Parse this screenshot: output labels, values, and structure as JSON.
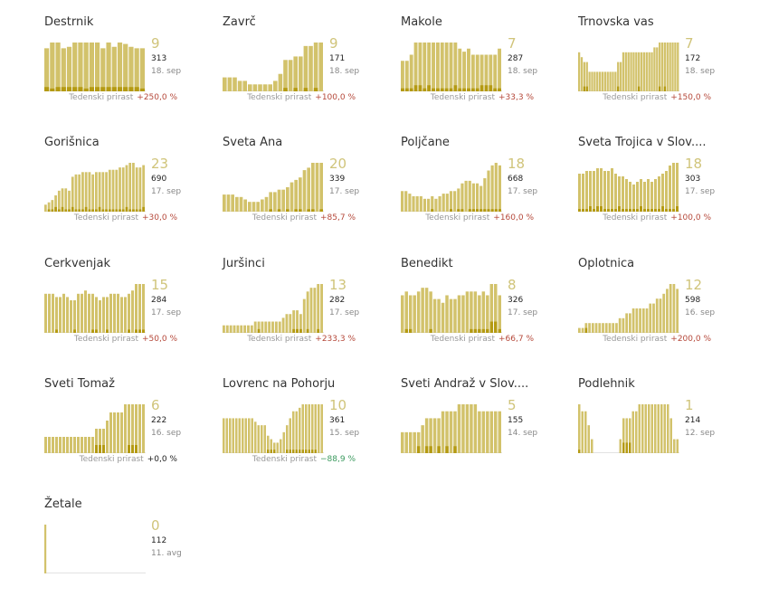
{
  "colors": {
    "bar": "#d2c26b",
    "bar_dark": "#b49a12",
    "baseline": "#e2e2e2",
    "up": "#b5483a",
    "down": "#3c9a5f"
  },
  "footer_label": "Tedenski prirast",
  "chart_data": [
    {
      "type": "bar",
      "title": "Destrnik",
      "value": "9",
      "total": "313",
      "date": "18. sep",
      "change": "+250,0 %",
      "trend": "up",
      "values": [
        30,
        34,
        34,
        30,
        31,
        34,
        34,
        34,
        34,
        34,
        30,
        34,
        31,
        34,
        33,
        31,
        30,
        30
      ],
      "highlight": [
        3,
        2,
        3,
        3,
        3,
        3,
        3,
        2,
        3,
        3,
        3,
        3,
        3,
        3,
        3,
        3,
        3,
        2
      ]
    },
    {
      "type": "bar",
      "title": "Zavrč",
      "value": "9",
      "total": "171",
      "date": "18. sep",
      "change": "+100,0 %",
      "trend": "up",
      "values": [
        4,
        4,
        4,
        3,
        3,
        2,
        2,
        2,
        2,
        2,
        3,
        5,
        9,
        9,
        10,
        10,
        13,
        13,
        14,
        14
      ],
      "highlight": [
        0,
        0,
        0,
        0,
        0,
        0,
        0,
        0,
        0,
        0,
        0,
        0,
        1,
        0,
        1,
        0,
        1,
        0,
        1,
        0
      ]
    },
    {
      "type": "bar",
      "title": "Makole",
      "value": "7",
      "total": "287",
      "date": "18. sep",
      "change": "+33,3 %",
      "trend": "up",
      "values": [
        10,
        10,
        12,
        16,
        16,
        16,
        16,
        16,
        16,
        16,
        16,
        16,
        16,
        14,
        13,
        14,
        12,
        12,
        12,
        12,
        12,
        12,
        14
      ],
      "highlight": [
        1,
        1,
        1,
        2,
        2,
        1,
        2,
        1,
        1,
        1,
        1,
        1,
        2,
        1,
        1,
        1,
        1,
        1,
        2,
        2,
        2,
        1,
        1
      ]
    },
    {
      "type": "bar",
      "title": "Trnovska vas",
      "value": "7",
      "total": "172",
      "date": "18. sep",
      "change": "+150,0 %",
      "trend": "up",
      "values": [
        8,
        7,
        6,
        6,
        4,
        4,
        4,
        4,
        4,
        4,
        4,
        4,
        4,
        4,
        4,
        6,
        6,
        8,
        8,
        8,
        8,
        8,
        8,
        8,
        8,
        8,
        8,
        8,
        8,
        9,
        9,
        10,
        10,
        10,
        10,
        10,
        10,
        10,
        10
      ],
      "highlight": [
        0,
        0,
        1,
        1,
        0,
        0,
        0,
        0,
        0,
        0,
        0,
        0,
        0,
        0,
        0,
        1,
        0,
        0,
        0,
        0,
        0,
        0,
        0,
        1,
        0,
        0,
        0,
        0,
        0,
        0,
        0,
        1,
        0,
        1,
        0,
        0,
        0,
        0,
        0
      ]
    },
    {
      "type": "bar",
      "title": "Gorišnica",
      "value": "23",
      "total": "690",
      "date": "17. sep",
      "change": "+30,0 %",
      "trend": "up",
      "values": [
        3,
        4,
        5,
        7,
        9,
        10,
        10,
        9,
        15,
        16,
        16,
        17,
        17,
        17,
        16,
        17,
        17,
        17,
        17,
        18,
        18,
        18,
        19,
        19,
        20,
        21,
        21,
        19,
        19,
        20
      ],
      "highlight": [
        0,
        1,
        1,
        2,
        1,
        2,
        1,
        1,
        2,
        1,
        1,
        1,
        2,
        1,
        1,
        1,
        2,
        1,
        1,
        1,
        1,
        1,
        1,
        1,
        2,
        1,
        1,
        1,
        1,
        2
      ]
    },
    {
      "type": "bar",
      "title": "Sveta Ana",
      "value": "20",
      "total": "339",
      "date": "17. sep",
      "change": "+85,7 %",
      "trend": "up",
      "values": [
        7,
        7,
        7,
        6,
        6,
        5,
        4,
        4,
        4,
        5,
        6,
        8,
        8,
        9,
        9,
        10,
        12,
        13,
        14,
        17,
        18,
        20,
        20,
        20
      ],
      "highlight": [
        0,
        0,
        0,
        0,
        0,
        0,
        0,
        0,
        0,
        0,
        0,
        1,
        0,
        1,
        0,
        1,
        0,
        1,
        1,
        0,
        1,
        1,
        0,
        1
      ]
    },
    {
      "type": "bar",
      "title": "Poljčane",
      "value": "18",
      "total": "668",
      "date": "17. sep",
      "change": "+160,0 %",
      "trend": "up",
      "values": [
        8,
        8,
        7,
        6,
        6,
        6,
        5,
        5,
        6,
        5,
        6,
        7,
        7,
        8,
        8,
        9,
        11,
        12,
        12,
        11,
        11,
        10,
        13,
        16,
        18,
        19,
        18
      ],
      "highlight": [
        0,
        0,
        0,
        0,
        0,
        0,
        0,
        0,
        1,
        0,
        0,
        0,
        0,
        1,
        0,
        1,
        1,
        0,
        1,
        1,
        1,
        1,
        1,
        1,
        1,
        1,
        1
      ]
    },
    {
      "type": "bar",
      "title": "Sveta Trojica v Slov....",
      "value": "18",
      "total": "303",
      "date": "17. sep",
      "change": "+100,0 %",
      "trend": "up",
      "values": [
        14,
        14,
        15,
        15,
        15,
        16,
        16,
        15,
        15,
        16,
        14,
        13,
        13,
        12,
        11,
        10,
        11,
        12,
        11,
        12,
        11,
        12,
        13,
        14,
        15,
        17,
        18,
        18
      ],
      "highlight": [
        1,
        1,
        1,
        2,
        1,
        2,
        2,
        1,
        1,
        1,
        1,
        2,
        1,
        1,
        1,
        1,
        1,
        2,
        1,
        1,
        1,
        1,
        1,
        2,
        1,
        1,
        1,
        2
      ]
    },
    {
      "type": "bar",
      "title": "Cerkvenjak",
      "value": "15",
      "total": "284",
      "date": "17. sep",
      "change": "+50,0 %",
      "trend": "up",
      "values": [
        12,
        12,
        12,
        11,
        11,
        12,
        11,
        10,
        10,
        12,
        12,
        13,
        12,
        12,
        11,
        10,
        11,
        11,
        12,
        12,
        12,
        11,
        11,
        12,
        13,
        15,
        15,
        15
      ],
      "highlight": [
        0,
        0,
        0,
        1,
        0,
        0,
        0,
        0,
        1,
        0,
        0,
        0,
        0,
        1,
        1,
        0,
        0,
        1,
        0,
        0,
        0,
        0,
        0,
        1,
        0,
        1,
        1,
        1
      ]
    },
    {
      "type": "bar",
      "title": "Juršinci",
      "value": "13",
      "total": "282",
      "date": "17. sep",
      "change": "+233,3 %",
      "trend": "up",
      "values": [
        2,
        2,
        2,
        2,
        2,
        2,
        2,
        2,
        2,
        3,
        3,
        3,
        3,
        3,
        3,
        3,
        3,
        4,
        5,
        5,
        6,
        6,
        5,
        9,
        11,
        12,
        12,
        13,
        13
      ],
      "highlight": [
        0,
        0,
        0,
        0,
        0,
        0,
        0,
        0,
        0,
        0,
        1,
        0,
        0,
        0,
        0,
        0,
        0,
        0,
        0,
        0,
        1,
        1,
        1,
        0,
        1,
        0,
        0,
        1,
        0
      ]
    },
    {
      "type": "bar",
      "title": "Benedikt",
      "value": "8",
      "total": "326",
      "date": "17. sep",
      "change": "+66,7 %",
      "trend": "up",
      "values": [
        10,
        11,
        10,
        10,
        11,
        12,
        12,
        11,
        9,
        9,
        8,
        10,
        9,
        9,
        10,
        10,
        11,
        11,
        11,
        10,
        11,
        10,
        13,
        13,
        10
      ],
      "highlight": [
        0,
        1,
        1,
        0,
        0,
        0,
        0,
        1,
        0,
        0,
        0,
        0,
        0,
        0,
        0,
        0,
        0,
        1,
        1,
        1,
        1,
        1,
        3,
        3,
        1
      ]
    },
    {
      "type": "bar",
      "title": "Oplotnica",
      "value": "12",
      "total": "598",
      "date": "16. sep",
      "change": "+200,0 %",
      "trend": "up",
      "values": [
        1,
        1,
        2,
        2,
        2,
        2,
        2,
        2,
        2,
        2,
        2,
        2,
        3,
        3,
        4,
        4,
        5,
        5,
        5,
        5,
        5,
        6,
        6,
        7,
        7,
        8,
        9,
        10,
        10,
        9
      ],
      "highlight": [
        0,
        0,
        1,
        0,
        0,
        0,
        0,
        0,
        0,
        0,
        0,
        0,
        0,
        0,
        0,
        0,
        0,
        0,
        0,
        0,
        0,
        0,
        0,
        0,
        0,
        0,
        0,
        0,
        0,
        0
      ]
    },
    {
      "type": "bar",
      "title": "Sveti Tomaž",
      "value": "6",
      "total": "222",
      "date": "16. sep",
      "change": "+0,0 %",
      "trend": "zero",
      "values": [
        2,
        2,
        2,
        2,
        2,
        2,
        2,
        2,
        2,
        2,
        2,
        2,
        2,
        2,
        3,
        3,
        3,
        4,
        5,
        5,
        5,
        5,
        6,
        6,
        6,
        6,
        6,
        6
      ],
      "highlight": [
        0,
        0,
        0,
        0,
        0,
        0,
        0,
        0,
        0,
        0,
        0,
        0,
        0,
        0,
        1,
        1,
        1,
        0,
        0,
        0,
        0,
        0,
        0,
        1,
        1,
        1,
        0,
        0
      ]
    },
    {
      "type": "bar",
      "title": "Lovrenc na Pohorju",
      "value": "10",
      "total": "361",
      "date": "15. sep",
      "change": "−88,9 %",
      "trend": "down",
      "values": [
        10,
        10,
        10,
        10,
        10,
        10,
        10,
        10,
        10,
        10,
        9,
        8,
        8,
        8,
        5,
        4,
        3,
        3,
        4,
        6,
        8,
        10,
        12,
        12,
        13,
        14,
        14,
        14,
        14,
        14,
        14,
        14
      ],
      "highlight": [
        0,
        0,
        0,
        0,
        0,
        0,
        0,
        0,
        0,
        0,
        0,
        0,
        0,
        0,
        1,
        1,
        1,
        0,
        0,
        0,
        1,
        1,
        1,
        1,
        1,
        1,
        1,
        1,
        1,
        1,
        0,
        0
      ]
    },
    {
      "type": "bar",
      "title": "Sveti Andraž v Slov....",
      "value": "5",
      "total": "155",
      "date": "14. sep",
      "change": "",
      "trend": "none",
      "values": [
        3,
        3,
        3,
        3,
        3,
        4,
        5,
        5,
        5,
        5,
        6,
        6,
        6,
        6,
        7,
        7,
        7,
        7,
        7,
        6,
        6,
        6,
        6,
        6,
        6
      ],
      "highlight": [
        0,
        0,
        0,
        0,
        1,
        0,
        1,
        1,
        0,
        1,
        0,
        1,
        0,
        1,
        0,
        0,
        0,
        0,
        0,
        0,
        0,
        0,
        0,
        0,
        0
      ]
    },
    {
      "type": "bar",
      "title": "Podlehnik",
      "value": "1",
      "total": "214",
      "date": "12. sep",
      "change": "",
      "trend": "none",
      "values": [
        14,
        12,
        12,
        8,
        4,
        0,
        0,
        0,
        0,
        0,
        0,
        0,
        0,
        4,
        10,
        10,
        10,
        12,
        12,
        14,
        14,
        14,
        14,
        14,
        14,
        14,
        14,
        14,
        14,
        10,
        4,
        4
      ],
      "highlight": [
        1,
        0,
        0,
        0,
        0,
        0,
        0,
        0,
        0,
        0,
        0,
        0,
        0,
        0,
        3,
        3,
        3,
        0,
        0,
        0,
        0,
        0,
        0,
        0,
        0,
        0,
        0,
        0,
        0,
        0,
        0,
        0
      ]
    },
    {
      "type": "bar",
      "title": "Žetale",
      "value": "0",
      "total": "112",
      "date": "11. avg",
      "change": "",
      "trend": "none",
      "values": [
        10,
        0,
        0,
        0,
        0,
        0,
        0,
        0,
        0,
        0,
        0,
        0,
        0,
        0,
        0,
        0,
        0,
        0,
        0,
        0,
        0,
        0,
        0,
        0,
        0,
        0,
        0,
        0,
        0,
        0,
        0,
        0,
        0,
        0,
        0,
        0,
        0,
        0,
        0,
        0
      ],
      "highlight": [
        0,
        0,
        0,
        0,
        0,
        0,
        0,
        0,
        0,
        0,
        0,
        0,
        0,
        0,
        0,
        0,
        0,
        0,
        0,
        0,
        0,
        0,
        0,
        0,
        0,
        0,
        0,
        0,
        0,
        0,
        0,
        0,
        0,
        0,
        0,
        0,
        0,
        0,
        0,
        0
      ]
    }
  ]
}
